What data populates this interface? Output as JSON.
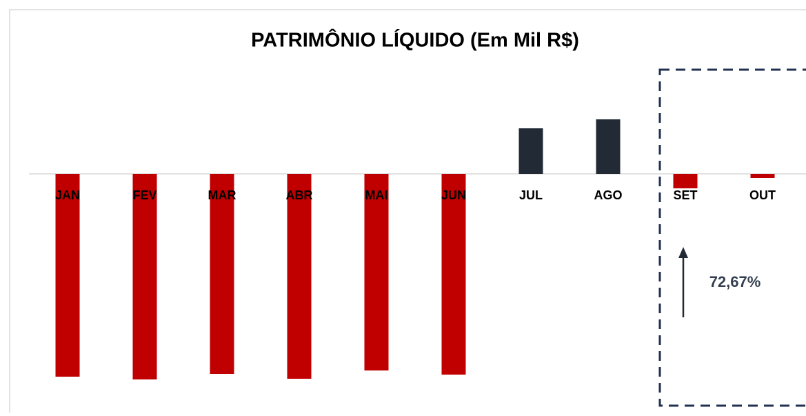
{
  "chart_data": {
    "type": "bar",
    "title": "PATRIMÔNIO LÍQUIDO (Em Mil R$)",
    "categories": [
      "JAN",
      "FEV",
      "MAR",
      "ABR",
      "MAI",
      "JUN",
      "JUL",
      "AGO",
      "SET",
      "OUT"
    ],
    "values": [
      -294,
      -298,
      -290,
      -297,
      -285,
      -291,
      66,
      79,
      -21,
      -6
    ],
    "colors": {
      "negative": "#c00000",
      "positive": "#222a36"
    },
    "ylim": [
      -346,
      152
    ],
    "annotation": "72,67%"
  }
}
